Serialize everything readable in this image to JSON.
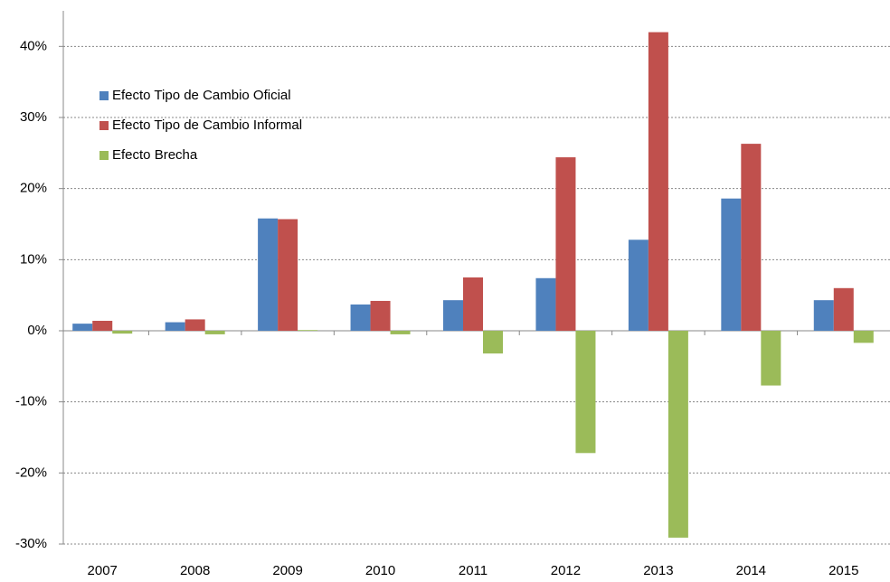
{
  "chart_data": {
    "type": "bar",
    "categories": [
      "2007",
      "2008",
      "2009",
      "2010",
      "2011",
      "2012",
      "2013",
      "2014",
      "2015"
    ],
    "series": [
      {
        "name": "Efecto Tipo de Cambio Oficial",
        "color": "#4f81bd",
        "values": [
          1.0,
          1.2,
          15.8,
          3.7,
          4.3,
          7.4,
          12.8,
          18.6,
          4.3
        ]
      },
      {
        "name": "Efecto Tipo de Cambio Informal",
        "color": "#c0504d",
        "values": [
          1.4,
          1.6,
          15.7,
          4.2,
          7.5,
          24.4,
          42.0,
          26.3,
          6.0
        ]
      },
      {
        "name": "Efecto Brecha",
        "color": "#9bbb59",
        "values": [
          -0.4,
          -0.5,
          0.1,
          -0.5,
          -3.2,
          -17.2,
          -29.1,
          -7.7,
          -1.7
        ]
      }
    ],
    "ylim": [
      -30,
      45
    ],
    "yticks": [
      {
        "value": -30,
        "label": "-30%"
      },
      {
        "value": -20,
        "label": "-20%"
      },
      {
        "value": -10,
        "label": "-10%"
      },
      {
        "value": 0,
        "label": "0%"
      },
      {
        "value": 10,
        "label": "10%"
      },
      {
        "value": 20,
        "label": "20%"
      },
      {
        "value": 30,
        "label": "30%"
      },
      {
        "value": 40,
        "label": "40%"
      }
    ],
    "grid": true,
    "legend": "upper left"
  }
}
